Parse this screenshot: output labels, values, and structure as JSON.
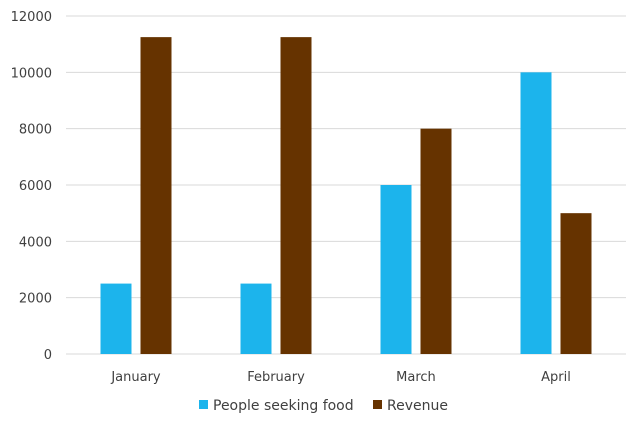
{
  "chart_data": {
    "type": "bar",
    "title": "",
    "xlabel": "",
    "ylabel": "",
    "categories": [
      "January",
      "February",
      "March",
      "April"
    ],
    "series": [
      {
        "name": "People seeking food",
        "values": [
          2500,
          2500,
          6000,
          10000
        ],
        "color": "#1cb4ec"
      },
      {
        "name": "Revenue",
        "values": [
          11250,
          11250,
          8000,
          5000
        ],
        "color": "#663300"
      }
    ],
    "ylim": [
      0,
      12000
    ],
    "yticks": [
      0,
      2000,
      4000,
      6000,
      8000,
      10000,
      12000
    ],
    "grid": true,
    "legend_position": "bottom"
  }
}
